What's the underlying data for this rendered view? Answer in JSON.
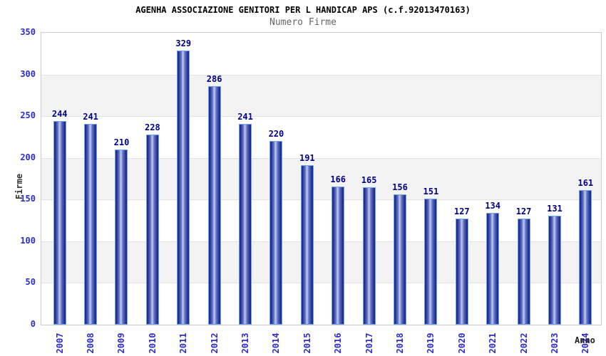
{
  "chart_data": {
    "type": "bar",
    "title": "AGENHA ASSOCIAZIONE GENITORI PER L HANDICAP APS (c.f.92013470163)",
    "subtitle": "Numero Firme",
    "xlabel": "Anno",
    "ylabel": "Firme",
    "categories": [
      "2007",
      "2008",
      "2009",
      "2010",
      "2011",
      "2012",
      "2013",
      "2014",
      "2015",
      "2016",
      "2017",
      "2018",
      "2019",
      "2020",
      "2021",
      "2022",
      "2023",
      "2024"
    ],
    "values": [
      244,
      241,
      210,
      228,
      329,
      286,
      241,
      220,
      191,
      166,
      165,
      156,
      151,
      127,
      134,
      127,
      131,
      161
    ],
    "ylim": [
      0,
      350
    ],
    "yticks": [
      0,
      50,
      100,
      150,
      200,
      250,
      300,
      350
    ],
    "legend": "none",
    "grid": "horizontal-alternating-bands"
  },
  "colors": {
    "title": "#000000",
    "subtitle": "#666666",
    "axis_tick_label": "#2b2bd0",
    "value_label": "#00008c",
    "axis_title": "#333333",
    "plot_border": "#cccccc",
    "gridline": "#e2e2e2",
    "band_gray": "#f3f3f3",
    "band_white": "#ffffff",
    "bar_border": "#6ea5ef",
    "bar_dark": "#1d2b91",
    "bar_mid": "#6574c4",
    "bar_light": "#c2cdf2"
  }
}
